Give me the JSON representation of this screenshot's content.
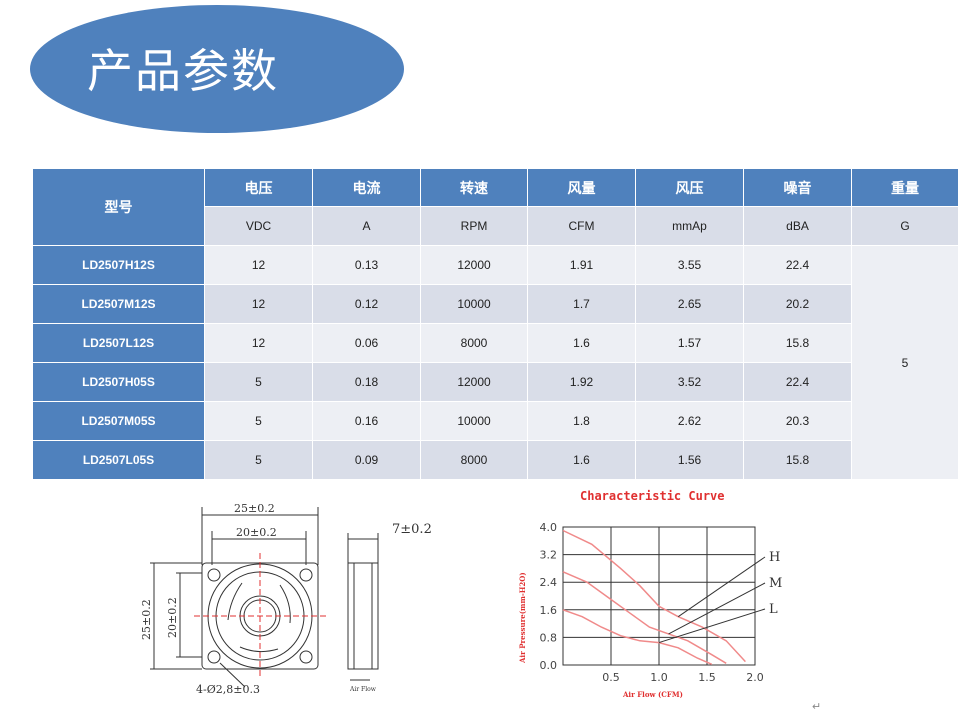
{
  "title": "产品参数",
  "table": {
    "header_model": "型号",
    "headers": [
      "电压",
      "电流",
      "转速",
      "风量",
      "风压",
      "噪音",
      "重量"
    ],
    "units": [
      "VDC",
      "A",
      "RPM",
      "CFM",
      "mmAp",
      "dBA",
      "G"
    ],
    "rows": [
      {
        "model": "LD2507H12S",
        "values": [
          "12",
          "0.13",
          "12000",
          "1.91",
          "3.55",
          "22.4"
        ]
      },
      {
        "model": "LD2507M12S",
        "values": [
          "12",
          "0.12",
          "10000",
          "1.7",
          "2.65",
          "20.2"
        ]
      },
      {
        "model": "LD2507L12S",
        "values": [
          "12",
          "0.06",
          "8000",
          "1.6",
          "1.57",
          "15.8"
        ]
      },
      {
        "model": "LD2507H05S",
        "values": [
          "5",
          "0.18",
          "12000",
          "1.92",
          "3.52",
          "22.4"
        ]
      },
      {
        "model": "LD2507M05S",
        "values": [
          "5",
          "0.16",
          "10000",
          "1.8",
          "2.62",
          "20.3"
        ]
      },
      {
        "model": "LD2507L05S",
        "values": [
          "5",
          "0.09",
          "8000",
          "1.6",
          "1.56",
          "15.8"
        ]
      }
    ],
    "weight": "5"
  },
  "drawing": {
    "dim_outer": "25±0.2",
    "dim_inner": "20±0.2",
    "dim_outer_v": "25±0.2",
    "dim_inner_v": "20±0.2",
    "dim_thickness": "7±0.2",
    "hole_spec": "4-Ø2,8±0.3",
    "airflow_label": "Air Flow"
  },
  "chart_data": {
    "type": "line",
    "title": "Characteristic Curve",
    "xlabel": "Air Flow (CFM)",
    "ylabel": "Air Pressure(mm-H2O)",
    "xlim": [
      0,
      2.0
    ],
    "ylim": [
      0,
      4.0
    ],
    "x_ticks": [
      "0.5",
      "1.0",
      "1.5",
      "2.0"
    ],
    "y_ticks": [
      "0.0",
      "0.8",
      "1.6",
      "2.4",
      "3.2",
      "4.0"
    ],
    "series": [
      {
        "name": "H",
        "points": [
          [
            0,
            3.9
          ],
          [
            0.3,
            3.5
          ],
          [
            0.6,
            2.8
          ],
          [
            0.8,
            2.3
          ],
          [
            1.0,
            1.7
          ],
          [
            1.2,
            1.4
          ],
          [
            1.45,
            1.1
          ],
          [
            1.7,
            0.7
          ],
          [
            1.9,
            0.1
          ]
        ]
      },
      {
        "name": "M",
        "points": [
          [
            0,
            2.7
          ],
          [
            0.25,
            2.4
          ],
          [
            0.5,
            1.9
          ],
          [
            0.7,
            1.5
          ],
          [
            0.9,
            1.1
          ],
          [
            1.1,
            0.9
          ],
          [
            1.3,
            0.7
          ],
          [
            1.55,
            0.3
          ],
          [
            1.7,
            0.05
          ]
        ]
      },
      {
        "name": "L",
        "points": [
          [
            0,
            1.6
          ],
          [
            0.2,
            1.4
          ],
          [
            0.4,
            1.1
          ],
          [
            0.6,
            0.85
          ],
          [
            0.8,
            0.7
          ],
          [
            1.0,
            0.65
          ],
          [
            1.2,
            0.5
          ],
          [
            1.4,
            0.2
          ],
          [
            1.55,
            0.02
          ]
        ]
      }
    ],
    "colors": {
      "curve": "#f08a8a",
      "title": "#e03030",
      "axis_label": "#e03030"
    }
  }
}
